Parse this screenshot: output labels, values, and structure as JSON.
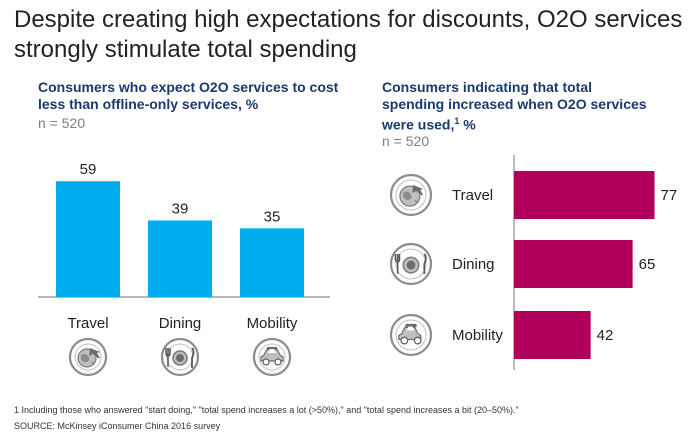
{
  "headline": "Despite creating high expectations for discounts, O2O services strongly stimulate total spending",
  "colors": {
    "left_bar": "#00aeef",
    "right_bar": "#b0005c",
    "icon_circle": "#8c8c8c",
    "icon_fill": "#bfbfbf",
    "headline_text": "#222222",
    "panel_title": "#1a3a6e"
  },
  "chart_data": [
    {
      "type": "bar",
      "title": "Consumers who expect O2O services to cost less than offline-only services, %",
      "subtitle": "n = 520",
      "categories": [
        "Travel",
        "Dining",
        "Mobility"
      ],
      "values": [
        59,
        39,
        35
      ],
      "icons": [
        "globe-plane-icon",
        "plate-cutlery-icon",
        "car-icon"
      ],
      "orientation": "vertical",
      "ylim": [
        0,
        80
      ],
      "grid": false
    },
    {
      "type": "bar",
      "title": "Consumers indicating that total spending increased when O2O services were used,",
      "title_superscript": "1",
      "title_suffix": " %",
      "subtitle": "n = 520",
      "categories": [
        "Travel",
        "Dining",
        "Mobility"
      ],
      "values": [
        77,
        65,
        42
      ],
      "icons": [
        "globe-plane-icon",
        "plate-cutlery-icon",
        "car-icon"
      ],
      "orientation": "horizontal",
      "xlim": [
        0,
        80
      ],
      "grid": false
    }
  ],
  "footnote": "1 Including those who answered \"start doing,\" \"total spend increases a lot (>50%),\" and \"total spend increases a bit (20–50%).\"",
  "source": "SOURCE: McKinsey iConsumer China 2016 survey"
}
